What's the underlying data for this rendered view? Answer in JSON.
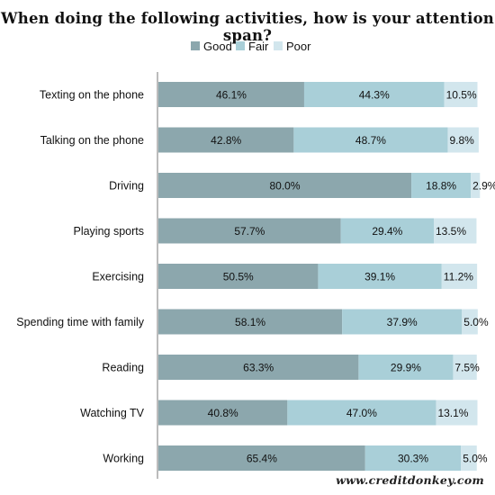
{
  "colors": {
    "good": "#8ca7ad",
    "fair": "#a9cfd8",
    "poor": "#d2e6ed",
    "axis": "#7a7a7a"
  },
  "watermark": "www.creditdonkey.com",
  "chart_data": {
    "type": "bar",
    "orientation": "horizontal",
    "stacked": true,
    "title": "When doing the following activities, how is your attention span?",
    "xlabel": "",
    "ylabel": "",
    "xlim": [
      0,
      100
    ],
    "grid": false,
    "legend_position": "top-center",
    "categories": [
      "Texting on the phone",
      "Talking on the phone",
      "Driving",
      "Playing sports",
      "Exercising",
      "Spending time with family",
      "Reading",
      "Watching TV",
      "Working"
    ],
    "series": [
      {
        "name": "Good",
        "color": "#8ca7ad",
        "values": [
          46.1,
          42.8,
          80.0,
          57.7,
          50.5,
          58.1,
          63.3,
          40.8,
          65.4
        ],
        "labels": [
          "46.1%",
          "42.8%",
          "80.0%",
          "57.7%",
          "50.5%",
          "58.1%",
          "63.3%",
          "40.8%",
          "65.4%"
        ]
      },
      {
        "name": "Fair",
        "color": "#a9cfd8",
        "values": [
          44.3,
          48.7,
          18.8,
          29.4,
          39.1,
          37.9,
          29.9,
          47.0,
          30.3
        ],
        "labels": [
          "44.3%",
          "48.7%",
          "18.8%",
          "29.4%",
          "39.1%",
          "37.9%",
          "29.9%",
          "47.0%",
          "30.3%"
        ]
      },
      {
        "name": "Poor",
        "color": "#d2e6ed",
        "values": [
          10.5,
          9.8,
          2.9,
          13.5,
          11.2,
          5.0,
          7.5,
          13.1,
          5.0
        ],
        "labels": [
          "10.5%",
          "9.8%",
          "2.9%",
          "13.5%",
          "11.2%",
          "5.0%",
          "7.5%",
          "13.1%",
          "5.0%"
        ]
      }
    ]
  }
}
